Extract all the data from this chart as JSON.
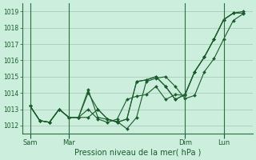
{
  "xlabel": "Pression niveau de la mer( hPa )",
  "bg_color": "#cceedd",
  "grid_color": "#aaccbb",
  "line_color": "#1a5c2a",
  "marker_color": "#1a5c2a",
  "yticks": [
    1012,
    1013,
    1014,
    1015,
    1016,
    1017,
    1018,
    1019
  ],
  "ylim": [
    1011.5,
    1019.5
  ],
  "day_labels": [
    "Sam",
    "Mar",
    "Dim",
    "Lun"
  ],
  "day_positions": [
    0,
    24,
    96,
    120
  ],
  "xlim": [
    -5,
    138
  ],
  "series": [
    {
      "x": [
        0,
        6,
        12,
        18,
        24,
        30,
        36,
        42,
        48,
        54,
        60,
        66,
        72,
        78,
        84,
        90,
        96,
        102,
        108,
        114,
        120,
        126,
        132
      ],
      "y": [
        1013.2,
        1012.3,
        1012.2,
        1013.0,
        1012.5,
        1012.5,
        1014.0,
        1013.0,
        1012.4,
        1012.2,
        1012.4,
        1014.7,
        1014.8,
        1015.0,
        1014.4,
        1013.6,
        1013.9,
        1015.3,
        1016.2,
        1017.3,
        1018.5,
        1018.9,
        1018.9
      ]
    },
    {
      "x": [
        0,
        6,
        12,
        18,
        24,
        30,
        36,
        42,
        48,
        54,
        60,
        66,
        72,
        78,
        84,
        90,
        96,
        102,
        108,
        114,
        120,
        126
      ],
      "y": [
        1013.2,
        1012.3,
        1012.2,
        1013.0,
        1012.5,
        1012.5,
        1012.5,
        1013.0,
        1012.4,
        1012.2,
        1012.4,
        1014.7,
        1014.8,
        1015.0,
        1014.4,
        1013.6,
        1013.9,
        1015.3,
        1016.2,
        1017.3,
        1018.5,
        1018.9
      ]
    },
    {
      "x": [
        0,
        6,
        12,
        18,
        24,
        30,
        36,
        42,
        54,
        60,
        66,
        72,
        78,
        84,
        90,
        96,
        102,
        108,
        114,
        120,
        126,
        132
      ],
      "y": [
        1013.2,
        1012.3,
        1012.2,
        1013.0,
        1012.5,
        1012.5,
        1014.2,
        1012.5,
        1012.25,
        1011.8,
        1012.5,
        1014.7,
        1014.9,
        1015.0,
        1014.4,
        1013.65,
        1013.85,
        1015.3,
        1016.1,
        1017.3,
        1018.45,
        1018.85
      ]
    },
    {
      "x": [
        0,
        6,
        12,
        18,
        24,
        30,
        36,
        42,
        48,
        54,
        60,
        66,
        72,
        78,
        84,
        90,
        96,
        102,
        108,
        114,
        120,
        126,
        132
      ],
      "y": [
        1013.2,
        1012.3,
        1012.2,
        1013.0,
        1012.5,
        1012.5,
        1013.0,
        1012.4,
        1012.2,
        1012.4,
        1013.6,
        1013.8,
        1013.9,
        1014.4,
        1013.6,
        1013.9,
        1013.85,
        1015.3,
        1016.2,
        1017.3,
        1018.5,
        1018.9,
        1019.0
      ]
    }
  ]
}
